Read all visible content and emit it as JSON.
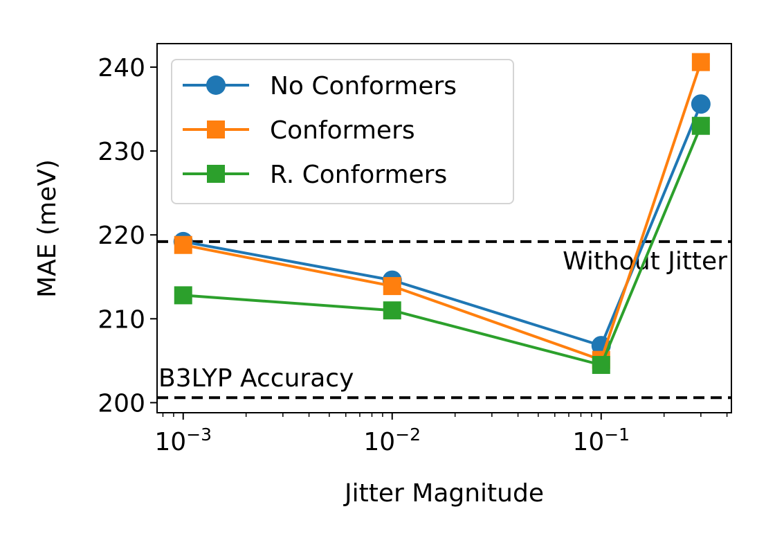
{
  "chart_data": {
    "type": "line",
    "xlabel": "Jitter Magnitude",
    "ylabel": "MAE (meV)",
    "x_scale": "log",
    "xlim": [
      0.00075,
      0.42
    ],
    "ylim": [
      198.8,
      242.8
    ],
    "x": [
      0.001,
      0.01,
      0.1,
      0.3
    ],
    "x_ticks": [
      {
        "value": 0.001,
        "base": "10",
        "exp": "−3"
      },
      {
        "value": 0.01,
        "base": "10",
        "exp": "−2"
      },
      {
        "value": 0.1,
        "base": "10",
        "exp": "−1"
      }
    ],
    "y_ticks": [
      200,
      210,
      220,
      230,
      240
    ],
    "grid": false,
    "legend_position": "upper-left",
    "series": [
      {
        "name": "No Conformers",
        "color": "#1f77b4",
        "marker": "circle",
        "values": [
          219.2,
          214.6,
          206.8,
          235.6
        ]
      },
      {
        "name": "Conformers",
        "color": "#ff7f0e",
        "marker": "square",
        "values": [
          218.8,
          213.9,
          205.1,
          240.6
        ]
      },
      {
        "name": "R. Conformers",
        "color": "#2ca02c",
        "marker": "square",
        "values": [
          212.8,
          211.0,
          204.5,
          233.0
        ]
      }
    ],
    "reference_lines": [
      {
        "value": 219.2,
        "label": "Without Jitter",
        "label_anchor": "right-below"
      },
      {
        "value": 200.6,
        "label": "B3LYP Accuracy",
        "label_anchor": "left-above"
      }
    ]
  }
}
